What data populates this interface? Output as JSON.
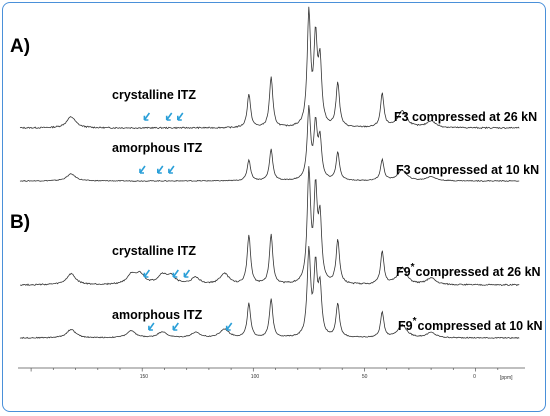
{
  "panels": [
    {
      "label": "A)",
      "traces": [
        {
          "annotation": "F3 compressed at 26 kN",
          "feature_label": "crystalline ITZ",
          "marker_ppm": [
            149,
            139,
            134
          ]
        },
        {
          "annotation": "F3 compressed at 10 kN",
          "feature_label": "amorphous ITZ",
          "marker_ppm": [
            151,
            143,
            138
          ]
        }
      ]
    },
    {
      "label": "B)",
      "traces": [
        {
          "annotation": "F9",
          "annotation_sup": "*",
          "annotation_rest": "compressed at 26 kN",
          "feature_label": "crystalline ITZ",
          "marker_ppm": [
            149,
            136,
            131
          ]
        },
        {
          "annotation": "F9",
          "annotation_sup": "*",
          "annotation_rest": "compressed at 10 kN",
          "feature_label": "amorphous ITZ",
          "marker_ppm": [
            147,
            136,
            112
          ]
        }
      ]
    }
  ],
  "chart_data": {
    "type": "line",
    "title": "",
    "xlabel": "[ppm]",
    "xlim": [
      205,
      -20
    ],
    "x_reversed": true,
    "x_ticks": [
      "150",
      "100",
      "50",
      "0"
    ],
    "grid": false,
    "series": [
      {
        "name": "F3 compressed at 26 kN",
        "peaks": [
          [
            182,
            0.1
          ],
          [
            102,
            0.3
          ],
          [
            92,
            0.45
          ],
          [
            75,
            1.0
          ],
          [
            72,
            0.75
          ],
          [
            70,
            0.55
          ],
          [
            62,
            0.4
          ],
          [
            42,
            0.3
          ],
          [
            33,
            0.15
          ],
          [
            20,
            0.06
          ]
        ]
      },
      {
        "name": "F3 compressed at 10 kN",
        "peaks": [
          [
            182,
            0.1
          ],
          [
            102,
            0.3
          ],
          [
            92,
            0.45
          ],
          [
            75,
            1.0
          ],
          [
            72,
            0.75
          ],
          [
            70,
            0.55
          ],
          [
            62,
            0.4
          ],
          [
            42,
            0.3
          ],
          [
            33,
            0.15
          ],
          [
            20,
            0.06
          ]
        ]
      },
      {
        "name": "F9 compressed at 26 kN",
        "peaks": [
          [
            182,
            0.1
          ],
          [
            155,
            0.08
          ],
          [
            151,
            0.09
          ],
          [
            141,
            0.08
          ],
          [
            137,
            0.07
          ],
          [
            126,
            0.06
          ],
          [
            113,
            0.1
          ],
          [
            102,
            0.45
          ],
          [
            92,
            0.45
          ],
          [
            75,
            1.0
          ],
          [
            72,
            0.8
          ],
          [
            70,
            0.55
          ],
          [
            62,
            0.4
          ],
          [
            42,
            0.3
          ],
          [
            33,
            0.15
          ],
          [
            20,
            0.06
          ]
        ]
      },
      {
        "name": "F9 compressed at 10 kN",
        "peaks": [
          [
            182,
            0.1
          ],
          [
            155,
            0.08
          ],
          [
            141,
            0.07
          ],
          [
            126,
            0.06
          ],
          [
            113,
            0.1
          ],
          [
            102,
            0.4
          ],
          [
            92,
            0.45
          ],
          [
            75,
            1.0
          ],
          [
            72,
            0.8
          ],
          [
            70,
            0.55
          ],
          [
            62,
            0.4
          ],
          [
            42,
            0.3
          ],
          [
            33,
            0.15
          ],
          [
            20,
            0.06
          ]
        ]
      }
    ]
  }
}
